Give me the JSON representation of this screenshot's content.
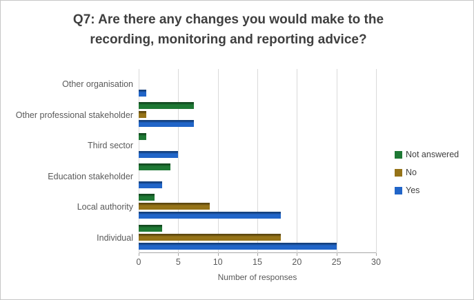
{
  "chart_data": {
    "type": "bar",
    "orientation": "horizontal",
    "title": "Q7: Are there any changes you would make to the recording, monitoring and reporting advice?",
    "xlabel": "Number of responses",
    "categories_top_to_bottom": [
      "Other organisation",
      "Other professional stakeholder",
      "Third sector",
      "Education stakeholder",
      "Local authority",
      "Individual"
    ],
    "series": [
      {
        "name": "Not answered",
        "color": "#1E7834",
        "values": [
          0,
          7,
          1,
          4,
          2,
          3
        ]
      },
      {
        "name": "No",
        "color": "#957318",
        "values": [
          0,
          1,
          0,
          0,
          9,
          18
        ]
      },
      {
        "name": "Yes",
        "color": "#2165C8",
        "values": [
          1,
          7,
          5,
          3,
          18,
          25
        ]
      }
    ],
    "xlim": [
      0,
      30
    ],
    "xticks": [
      0,
      5,
      10,
      15,
      20,
      25,
      30
    ],
    "grid": true,
    "legend_position": "right",
    "colors": {
      "gridline": "#d9d9d9",
      "axis_line": "#a6a6a6",
      "title_text": "#3f3f3f",
      "label_text": "#595959",
      "legend_text": "#404040"
    }
  }
}
